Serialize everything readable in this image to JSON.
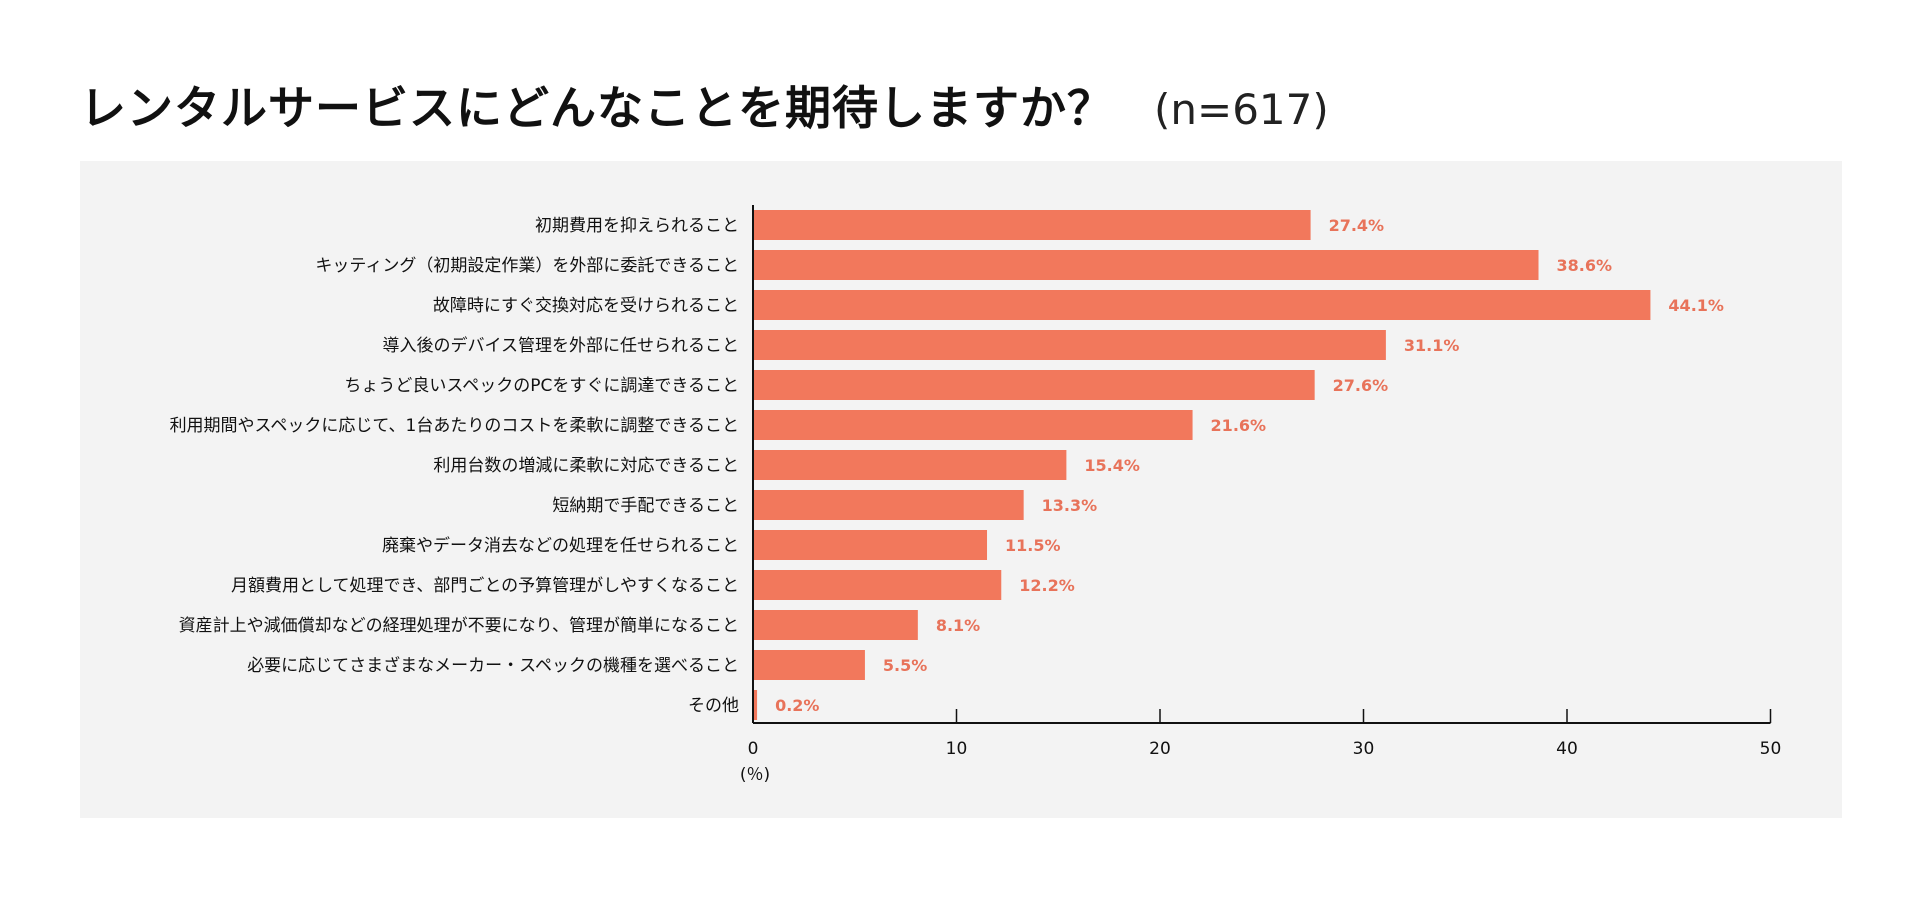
{
  "title": "レンタルサービスにどんなことを期待しますか？",
  "sample_size": "(n=617)",
  "colors": {
    "bar": "#f2785c",
    "value_label": "#e8735a",
    "panel": "#f3f3f3",
    "axis": "#111111"
  },
  "chart_data": {
    "type": "bar",
    "orientation": "horizontal",
    "title": "レンタルサービスにどんなことを期待しますか？",
    "categories": [
      "初期費用を抑えられること",
      "キッティング（初期設定作業）を外部に委託できること",
      "故障時にすぐ交換対応を受けられること",
      "導入後のデバイス管理を外部に任せられること",
      "ちょうど良いスペックのPCをすぐに調達できること",
      "利用期間やスペックに応じて、1台あたりのコストを柔軟に調整できること",
      "利用台数の増減に柔軟に対応できること",
      "短納期で手配できること",
      "廃棄やデータ消去などの処理を任せられること",
      "月額費用として処理でき、部門ごとの予算管理がしやすくなること",
      "資産計上や減価償却などの経理処理が不要になり、管理が簡単になること",
      "必要に応じてさまざまなメーカー・スペックの機種を選べること",
      "その他"
    ],
    "values": [
      27.4,
      38.6,
      44.1,
      31.1,
      27.6,
      21.6,
      15.4,
      13.3,
      11.5,
      12.2,
      8.1,
      5.5,
      0.2
    ],
    "value_labels": [
      "27.4%",
      "38.6%",
      "44.1%",
      "31.1%",
      "27.6%",
      "21.6%",
      "15.4%",
      "13.3%",
      "11.5%",
      "12.2%",
      "8.1%",
      "5.5%",
      "0.2%"
    ],
    "xlabel": "(％)",
    "ylabel": "",
    "xlim": [
      0,
      50
    ],
    "xticks": [
      0,
      10,
      20,
      30,
      40,
      50
    ],
    "xtick_labels": [
      "0",
      "10",
      "20",
      "30",
      "40",
      "50"
    ],
    "grid": false,
    "legend": "none"
  }
}
